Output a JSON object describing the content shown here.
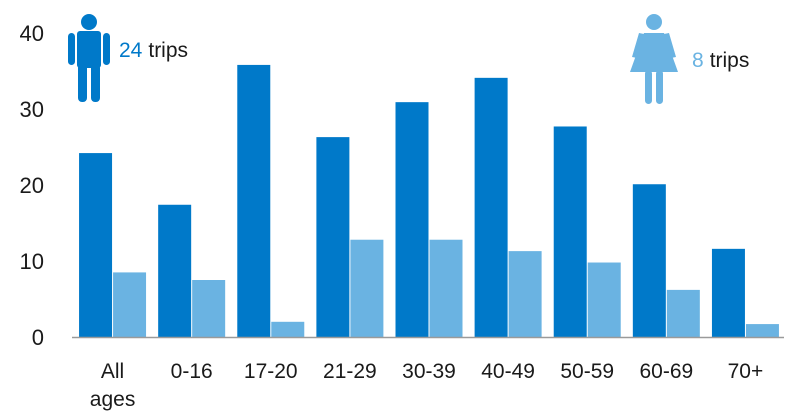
{
  "chart_data": {
    "type": "bar",
    "categories": [
      "All ages",
      "0-16",
      "17-20",
      "21-29",
      "30-39",
      "40-49",
      "50-59",
      "60-69",
      "70+"
    ],
    "category_lines": [
      [
        "All",
        "ages"
      ],
      [
        "0-16"
      ],
      [
        "17-20"
      ],
      [
        "21-29"
      ],
      [
        "30-39"
      ],
      [
        "40-49"
      ],
      [
        "50-59"
      ],
      [
        "60-69"
      ],
      [
        "70+"
      ]
    ],
    "series": [
      {
        "name": "male",
        "color": "#0079c9",
        "values": [
          24.2,
          17.4,
          35.8,
          26.3,
          30.9,
          34.1,
          27.7,
          20.1,
          11.6
        ]
      },
      {
        "name": "female",
        "color": "#6ab3e2",
        "values": [
          8.5,
          7.5,
          2.0,
          12.8,
          12.8,
          11.3,
          9.8,
          6.2,
          1.7
        ]
      }
    ],
    "ylim": [
      0,
      40
    ],
    "yticks": [
      0,
      10,
      20,
      30,
      40
    ],
    "legend": {
      "male": {
        "value": "24",
        "unit": "trips",
        "icon": "man-icon"
      },
      "female": {
        "value": "8",
        "unit": "trips",
        "icon": "woman-icon"
      }
    }
  }
}
